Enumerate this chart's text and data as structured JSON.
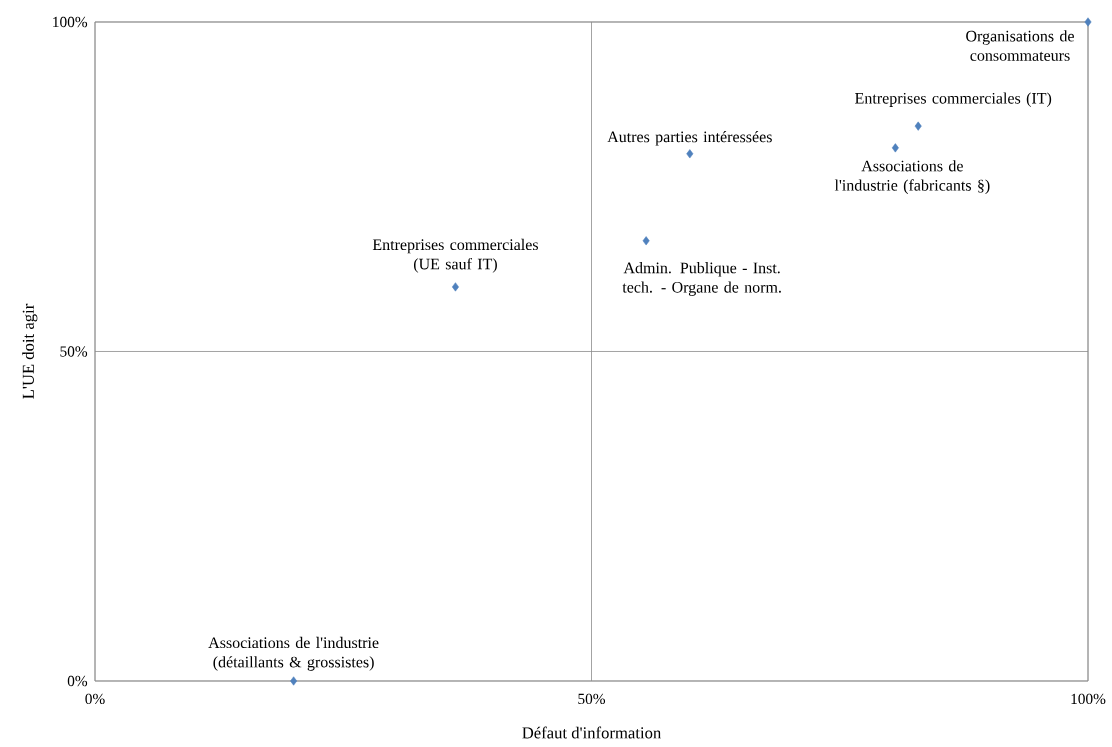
{
  "chart_data": {
    "type": "scatter",
    "xlabel": "Défaut d'information",
    "ylabel": "L'UE doit agir",
    "x": [
      100,
      82.9,
      80.6,
      59.9,
      55.5,
      36.3,
      20.0
    ],
    "values": [
      100,
      84.2,
      80.9,
      80.0,
      66.8,
      59.8,
      0
    ],
    "color": "#4f81bd",
    "marker": "diamond",
    "grid": true,
    "xlim": [
      0,
      100
    ],
    "ylim": [
      0,
      100
    ],
    "xticks": [
      {
        "value": 0,
        "label": "0%"
      },
      {
        "value": 50,
        "label": "50%"
      },
      {
        "value": 100,
        "label": "100%"
      }
    ],
    "yticks": [
      {
        "value": 0,
        "label": "0%"
      },
      {
        "value": 50,
        "label": "50%"
      },
      {
        "value": 100,
        "label": "100%"
      }
    ],
    "annotations": [
      {
        "text": "Organisations de consommateurs",
        "x": 100,
        "y": 100
      },
      {
        "text": "Entreprises commerciales (IT)",
        "x": 82.9,
        "y": 84.2
      },
      {
        "text": "Associations de l'industrie (fabricants §)",
        "x": 80.6,
        "y": 80.9
      },
      {
        "text": "Autres parties intéressées",
        "x": 59.9,
        "y": 80.0
      },
      {
        "text": "Admin. Publique  - Inst. tech. - Organe de norm.",
        "x": 55.5,
        "y": 66.8
      },
      {
        "text": "Entreprises commerciales (UE sauf IT)",
        "x": 36.3,
        "y": 59.8
      },
      {
        "text": "Associations de l'industrie (détaillants & grossistes)",
        "x": 20.0,
        "y": 0
      }
    ]
  }
}
